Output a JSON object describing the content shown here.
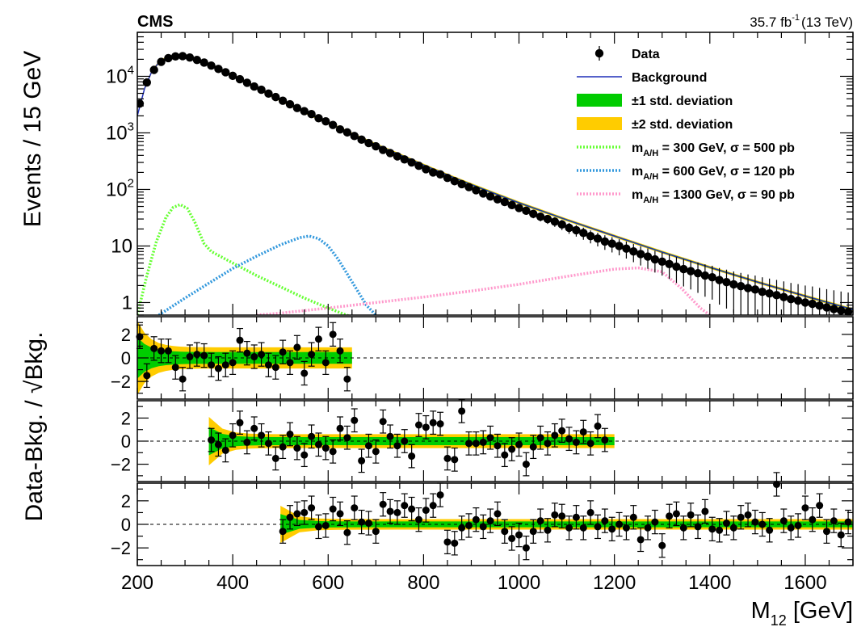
{
  "header": {
    "experiment": "CMS",
    "lumi": "35.7 fb",
    "lumi_exp": "-1",
    "energy": "(13 TeV)"
  },
  "colors": {
    "data": "#000000",
    "background_fit": "#1f2fb8",
    "band_1sigma": "#00cc00",
    "band_2sigma": "#ffcc00",
    "signal_300": "#66ff33",
    "signal_600": "#3399dd",
    "signal_1300": "#ff99cc"
  },
  "chart_data": [
    {
      "type": "scatter",
      "panel": "main",
      "ylabel": "Events / 15 GeV",
      "yscale": "log",
      "xlim": [
        200,
        1700
      ],
      "ylim": [
        0.6,
        60000
      ],
      "ytick_labels": [
        {
          "value": 1,
          "label": "1"
        },
        {
          "value": 10,
          "label": "10"
        },
        {
          "value": 100,
          "label": "10",
          "exp": "2"
        },
        {
          "value": 1000,
          "label": "10",
          "exp": "3"
        },
        {
          "value": 10000,
          "label": "10",
          "exp": "4"
        }
      ],
      "legend_position": "top-right",
      "legend": [
        {
          "kind": "marker",
          "label": "Data"
        },
        {
          "kind": "line",
          "label": "Background"
        },
        {
          "kind": "box1",
          "label": "±1 std. deviation"
        },
        {
          "kind": "box2",
          "label": "±2 std. deviation"
        },
        {
          "kind": "s300",
          "label": "m",
          "sub": "A/H",
          "rest": " =   300 GeV, σ = 500 pb"
        },
        {
          "kind": "s600",
          "label": "m",
          "sub": "A/H",
          "rest": " =   600 GeV, σ = 120 pb"
        },
        {
          "kind": "s1300",
          "label": "m",
          "sub": "A/H",
          "rest": " = 1300 GeV, σ = 90 pb"
        }
      ],
      "data_points": {
        "x": [
          205,
          220,
          235,
          250,
          265,
          280,
          295,
          310,
          325,
          340,
          355,
          370,
          385,
          400,
          415,
          430,
          445,
          460,
          475,
          490,
          505,
          520,
          535,
          550,
          565,
          580,
          595,
          610,
          625,
          640,
          655,
          670,
          685,
          700,
          715,
          730,
          745,
          760,
          775,
          790,
          805,
          820,
          835,
          850,
          865,
          880,
          895,
          910,
          925,
          940,
          955,
          970,
          985,
          1000,
          1015,
          1030,
          1045,
          1060,
          1075,
          1090,
          1105,
          1120,
          1135,
          1150,
          1165,
          1180,
          1195,
          1210,
          1225,
          1240,
          1255,
          1270,
          1285,
          1300,
          1315,
          1330,
          1345,
          1360,
          1375,
          1390,
          1405,
          1420,
          1435,
          1450,
          1465,
          1480,
          1495,
          1510,
          1525,
          1540,
          1555,
          1570,
          1585,
          1600,
          1615,
          1630,
          1645,
          1660,
          1675,
          1690
        ],
        "y": [
          3300,
          7800,
          13000,
          18000,
          21000,
          22500,
          22800,
          21500,
          19500,
          17500,
          15500,
          13500,
          11800,
          10200,
          8900,
          7700,
          6600,
          5800,
          4950,
          4300,
          3700,
          3200,
          2750,
          2420,
          2150,
          1820,
          1600,
          1380,
          1150,
          1020,
          880,
          760,
          660,
          580,
          500,
          440,
          385,
          340,
          300,
          262,
          228,
          200,
          185,
          160,
          140,
          124,
          110,
          97,
          85,
          75,
          67,
          60,
          53,
          47,
          42,
          37,
          33,
          30,
          27,
          24,
          21,
          19,
          17,
          15,
          13.5,
          12,
          11,
          10,
          9,
          8,
          7.2,
          6.5,
          5.8,
          5.3,
          4.8,
          4.3,
          3.9,
          3.6,
          3.3,
          3.0,
          2.8,
          2.5,
          2.3,
          2.1,
          1.95,
          1.8,
          1.7,
          1.55,
          1.45,
          1.35,
          1.25,
          1.15,
          1.08,
          1.0,
          0.95,
          0.88,
          0.82,
          0.77,
          0.72,
          0.68
        ]
      },
      "background_fit": {
        "x": [
          200,
          215,
          230,
          245,
          260,
          275,
          290,
          310,
          340,
          370,
          400,
          450,
          500,
          550,
          600,
          650,
          700,
          750,
          800,
          850,
          900,
          950,
          1000,
          1100,
          1200,
          1300,
          1400,
          1500,
          1600,
          1700
        ],
        "y": [
          2000,
          6000,
          12000,
          17500,
          21000,
          22500,
          22600,
          21800,
          17800,
          13600,
          10300,
          6300,
          3800,
          2350,
          1500,
          960,
          620,
          410,
          270,
          180,
          122,
          84,
          58,
          29,
          15,
          7.8,
          4.2,
          2.3,
          1.3,
          0.75
        ]
      },
      "series": [
        {
          "name": "m_A/H = 300 GeV",
          "x": [
            200,
            220,
            240,
            260,
            275,
            290,
            305,
            320,
            340,
            355,
            400,
            450,
            500,
            550,
            600,
            650,
            700
          ],
          "y": [
            0.6,
            3,
            12,
            32,
            48,
            54,
            46,
            27,
            11,
            8,
            5,
            3,
            1.9,
            1.2,
            0.8,
            0.55,
            0.4
          ]
        },
        {
          "name": "m_A/H = 600 GeV",
          "x": [
            245,
            300,
            350,
            400,
            450,
            500,
            540,
            560,
            580,
            600,
            620,
            640,
            660,
            680,
            700
          ],
          "y": [
            0.6,
            1.2,
            2.2,
            4,
            6.6,
            10.5,
            14,
            15,
            13.5,
            10,
            6,
            3.2,
            1.7,
            0.9,
            0.6
          ]
        },
        {
          "name": "m_A/H = 1300 GeV",
          "x": [
            450,
            500,
            600,
            700,
            800,
            900,
            1000,
            1100,
            1200,
            1250,
            1300,
            1340,
            1380,
            1400
          ],
          "y": [
            0.6,
            0.65,
            0.8,
            1.0,
            1.25,
            1.6,
            2.1,
            2.9,
            3.9,
            4.1,
            3.5,
            1.8,
            0.8,
            0.6
          ]
        }
      ]
    },
    {
      "type": "scatter",
      "panel": "pull_300",
      "ylabel": "Data-Bkg. / √Bkg.",
      "xlim": [
        200,
        1700
      ],
      "ylim": [
        -3.5,
        3.5
      ],
      "ytick_labels": [
        "2",
        "0",
        "−2"
      ],
      "band_x": [
        200,
        650
      ],
      "band_1sigma_half_width": 0.5,
      "band_2sigma_half_width": 0.9,
      "x": [
        205,
        220,
        235,
        250,
        265,
        280,
        295,
        310,
        325,
        340,
        355,
        370,
        385,
        400,
        415,
        430,
        445,
        460,
        475,
        490,
        505,
        520,
        535,
        550,
        565,
        580,
        595,
        610,
        625,
        640
      ],
      "y": [
        1.8,
        -1.5,
        0.8,
        0.6,
        0.6,
        -0.8,
        -1.8,
        0.1,
        0.3,
        0.2,
        -0.6,
        -0.9,
        -0.6,
        -0.4,
        1.5,
        0.4,
        0.1,
        0.3,
        -0.6,
        -0.8,
        0.5,
        -0.4,
        0.9,
        -1.3,
        0.3,
        1.6,
        -0.4,
        2.0,
        0.6,
        -1.8
      ]
    },
    {
      "type": "scatter",
      "panel": "pull_600",
      "xlim": [
        200,
        1700
      ],
      "ylim": [
        -3.5,
        3.5
      ],
      "ytick_labels": [
        "2",
        "0",
        "−2"
      ],
      "band_x": [
        350,
        1200
      ],
      "band_1sigma_half_width": 0.35,
      "band_2sigma_half_width": 0.6,
      "x": [
        355,
        370,
        385,
        400,
        415,
        430,
        445,
        460,
        475,
        490,
        505,
        520,
        535,
        550,
        565,
        580,
        595,
        610,
        625,
        640,
        655,
        670,
        685,
        700,
        715,
        730,
        745,
        760,
        775,
        790,
        805,
        820,
        835,
        850,
        865,
        880,
        895,
        910,
        925,
        940,
        955,
        970,
        985,
        1000,
        1015,
        1030,
        1045,
        1060,
        1075,
        1090,
        1105,
        1120,
        1135,
        1150,
        1165,
        1180
      ],
      "y": [
        0.1,
        -0.3,
        -0.8,
        0.5,
        1.6,
        -0.1,
        1.1,
        0.5,
        -0.2,
        -1.5,
        -0.5,
        0.6,
        -0.6,
        -1.2,
        0.4,
        -0.3,
        -0.6,
        -0.9,
        1.1,
        0.3,
        1.8,
        -1.7,
        -0.4,
        -0.9,
        1.7,
        0.4,
        -0.4,
        0.0,
        -1.3,
        1.4,
        1.2,
        1.6,
        1.5,
        -1.5,
        -1.6,
        2.6,
        -0.2,
        -0.2,
        -0.1,
        0.3,
        -0.4,
        -1.2,
        -0.7,
        -0.3,
        -2.0,
        -0.5,
        0.3,
        -0.2,
        0.5,
        0.9,
        0.2,
        -0.1,
        0.8,
        -0.2,
        1.3,
        0.1
      ]
    },
    {
      "type": "scatter",
      "panel": "pull_1300",
      "xlim": [
        200,
        1700
      ],
      "ylim": [
        -3.5,
        3.5
      ],
      "ytick_labels": [
        "2",
        "0",
        "−2"
      ],
      "xlabel": "M",
      "xlabel_sub": "12",
      "xlabel_unit": " [GeV]",
      "xtick_labels": [
        "200",
        "400",
        "600",
        "800",
        "1000",
        "1200",
        "1400",
        "1600"
      ],
      "band_x": [
        500,
        1700
      ],
      "band_1sigma_half_width": 0.25,
      "band_2sigma_half_width": 0.45,
      "x": [
        505,
        520,
        535,
        550,
        565,
        580,
        595,
        610,
        625,
        640,
        655,
        670,
        685,
        700,
        715,
        730,
        745,
        760,
        775,
        790,
        805,
        820,
        835,
        850,
        865,
        880,
        895,
        910,
        925,
        940,
        955,
        970,
        985,
        1000,
        1015,
        1030,
        1045,
        1060,
        1075,
        1090,
        1105,
        1120,
        1135,
        1150,
        1165,
        1180,
        1195,
        1210,
        1225,
        1240,
        1255,
        1270,
        1285,
        1300,
        1315,
        1330,
        1345,
        1360,
        1375,
        1390,
        1405,
        1420,
        1435,
        1450,
        1465,
        1480,
        1495,
        1510,
        1525,
        1540,
        1555,
        1570,
        1585,
        1600,
        1615,
        1630,
        1645,
        1660,
        1675,
        1690
      ],
      "y": [
        -0.6,
        0.6,
        0.9,
        1.0,
        1.4,
        -0.2,
        -0.1,
        1.3,
        0.9,
        -0.7,
        1.4,
        0.2,
        0.1,
        -0.6,
        1.7,
        1.1,
        1.0,
        1.6,
        1.3,
        0.4,
        1.2,
        1.6,
        2.5,
        -1.5,
        -1.6,
        -0.3,
        -0.1,
        0.4,
        -0.2,
        0.3,
        0.9,
        -0.6,
        -1.2,
        -0.9,
        -2.0,
        -0.6,
        0.3,
        -0.5,
        0.8,
        0.7,
        -0.3,
        0.6,
        -0.3,
        1.0,
        -0.2,
        0.3,
        -0.4,
        0.0,
        -0.3,
        0.6,
        -1.3,
        -0.3,
        0.2,
        -1.8,
        0.7,
        0.9,
        -0.3,
        0.8,
        -0.2,
        1.1,
        -0.4,
        -0.5,
        0.1,
        -0.3,
        0.6,
        0.8,
        0.2,
        0.0,
        -0.5,
        3.4,
        0.3,
        -0.3,
        -0.1,
        1.4,
        0.4,
        1.6,
        -0.6,
        0.3,
        -0.9,
        0.2
      ]
    }
  ]
}
